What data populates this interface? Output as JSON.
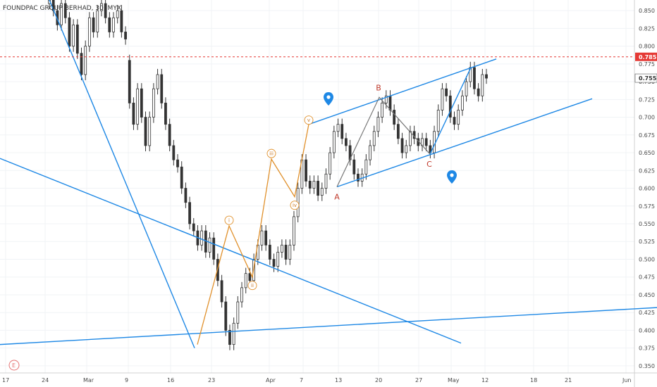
{
  "chart_data": {
    "type": "candlestick",
    "title": "FOUNDPAC GROUP BERHAD, 30, MYX",
    "price_axis": {
      "range": [
        0.34,
        0.865
      ],
      "ticks": [
        "0.850",
        "0.825",
        "0.800",
        "0.775",
        "0.750",
        "0.725",
        "0.700",
        "0.675",
        "0.650",
        "0.625",
        "0.600",
        "0.575",
        "0.550",
        "0.525",
        "0.500",
        "0.475",
        "0.450",
        "0.425",
        "0.400",
        "0.375",
        "0.350"
      ],
      "last_price": "0.785",
      "current_price": "0.755"
    },
    "time_axis": {
      "labels": [
        "17",
        "24",
        "Mar",
        "9",
        "16",
        "23",
        "Apr",
        "7",
        "13",
        "20",
        "27",
        "May",
        "12",
        "18",
        "21",
        "Jun"
      ]
    },
    "series": [
      {
        "type": "candlestick",
        "points": [
          [
            0.86,
            0.865
          ],
          [
            0.865,
            0.85
          ],
          [
            0.85,
            0.83
          ],
          [
            0.83,
            0.86
          ],
          [
            0.86,
            0.84
          ],
          [
            0.84,
            0.8
          ],
          [
            0.8,
            0.83
          ],
          [
            0.83,
            0.79
          ],
          [
            0.79,
            0.76
          ],
          [
            0.76,
            0.8
          ],
          [
            0.8,
            0.84
          ],
          [
            0.84,
            0.82
          ],
          [
            0.82,
            0.85
          ],
          [
            0.85,
            0.86
          ],
          [
            0.86,
            0.84
          ],
          [
            0.84,
            0.82
          ],
          [
            0.82,
            0.84
          ],
          [
            0.84,
            0.85
          ],
          [
            0.85,
            0.82
          ],
          [
            0.82,
            0.81
          ],
          [
            0.78,
            0.72
          ],
          [
            0.72,
            0.69
          ],
          [
            0.69,
            0.74
          ],
          [
            0.74,
            0.7
          ],
          [
            0.7,
            0.66
          ],
          [
            0.66,
            0.7
          ],
          [
            0.7,
            0.74
          ],
          [
            0.74,
            0.76
          ],
          [
            0.76,
            0.72
          ],
          [
            0.72,
            0.69
          ],
          [
            0.69,
            0.66
          ],
          [
            0.66,
            0.64
          ],
          [
            0.64,
            0.63
          ],
          [
            0.63,
            0.6
          ],
          [
            0.6,
            0.58
          ],
          [
            0.58,
            0.55
          ],
          [
            0.55,
            0.54
          ],
          [
            0.54,
            0.52
          ],
          [
            0.52,
            0.54
          ],
          [
            0.54,
            0.51
          ],
          [
            0.51,
            0.53
          ],
          [
            0.53,
            0.5
          ],
          [
            0.5,
            0.47
          ],
          [
            0.47,
            0.44
          ],
          [
            0.44,
            0.4
          ],
          [
            0.4,
            0.38
          ],
          [
            0.38,
            0.41
          ],
          [
            0.41,
            0.44
          ],
          [
            0.44,
            0.46
          ],
          [
            0.46,
            0.48
          ],
          [
            0.48,
            0.47
          ],
          [
            0.47,
            0.5
          ],
          [
            0.5,
            0.52
          ],
          [
            0.52,
            0.54
          ],
          [
            0.54,
            0.52
          ],
          [
            0.52,
            0.5
          ],
          [
            0.5,
            0.49
          ],
          [
            0.49,
            0.51
          ],
          [
            0.51,
            0.52
          ],
          [
            0.52,
            0.5
          ],
          [
            0.5,
            0.52
          ],
          [
            0.52,
            0.56
          ],
          [
            0.56,
            0.6
          ],
          [
            0.6,
            0.64
          ],
          [
            0.64,
            0.61
          ],
          [
            0.61,
            0.6
          ],
          [
            0.6,
            0.61
          ],
          [
            0.61,
            0.59
          ],
          [
            0.59,
            0.6
          ],
          [
            0.6,
            0.62
          ],
          [
            0.62,
            0.65
          ],
          [
            0.65,
            0.68
          ],
          [
            0.68,
            0.69
          ],
          [
            0.69,
            0.67
          ],
          [
            0.67,
            0.66
          ],
          [
            0.66,
            0.64
          ],
          [
            0.64,
            0.62
          ],
          [
            0.62,
            0.61
          ],
          [
            0.61,
            0.62
          ],
          [
            0.62,
            0.64
          ],
          [
            0.64,
            0.66
          ],
          [
            0.66,
            0.68
          ],
          [
            0.68,
            0.7
          ],
          [
            0.7,
            0.72
          ],
          [
            0.72,
            0.73
          ],
          [
            0.73,
            0.71
          ],
          [
            0.71,
            0.69
          ],
          [
            0.69,
            0.67
          ],
          [
            0.67,
            0.65
          ],
          [
            0.65,
            0.66
          ],
          [
            0.66,
            0.68
          ],
          [
            0.68,
            0.67
          ],
          [
            0.67,
            0.66
          ],
          [
            0.66,
            0.67
          ],
          [
            0.67,
            0.66
          ],
          [
            0.66,
            0.65
          ],
          [
            0.65,
            0.68
          ],
          [
            0.68,
            0.71
          ],
          [
            0.71,
            0.74
          ],
          [
            0.74,
            0.73
          ],
          [
            0.73,
            0.7
          ],
          [
            0.7,
            0.69
          ],
          [
            0.69,
            0.71
          ],
          [
            0.71,
            0.73
          ],
          [
            0.73,
            0.75
          ],
          [
            0.75,
            0.77
          ],
          [
            0.77,
            0.74
          ],
          [
            0.74,
            0.73
          ],
          [
            0.73,
            0.76
          ],
          [
            0.76,
            0.755
          ]
        ]
      }
    ],
    "trend_lines": [
      {
        "from": [
          0,
          0.865
        ],
        "to": [
          0.3,
          0.375
        ]
      },
      {
        "from": [
          0,
          0.64
        ],
        "to": [
          0.7,
          0.382
        ]
      },
      {
        "from": [
          0,
          0.38
        ],
        "to": [
          1.0,
          0.432
        ]
      },
      {
        "from": [
          0.47,
          0.69
        ],
        "to": [
          0.76,
          0.782
        ]
      },
      {
        "from": [
          0.51,
          0.602
        ],
        "to": [
          0.9,
          0.726
        ]
      },
      {
        "from": [
          0.7,
          0.645
        ],
        "to": [
          0.72,
          0.77
        ]
      }
    ],
    "elliott_waves": [
      {
        "label": "i",
        "value": 0.547
      },
      {
        "label": "ii",
        "value": 0.475
      },
      {
        "label": "iii",
        "value": 0.641
      },
      {
        "label": "iv",
        "value": 0.588
      },
      {
        "label": "v",
        "value": 0.69
      }
    ],
    "abc_points": [
      {
        "label": "A",
        "value": 0.602
      },
      {
        "label": "B",
        "value": 0.728
      },
      {
        "label": "C",
        "value": 0.648
      }
    ],
    "annotations": {
      "event_marker": "E"
    },
    "colors": {
      "up": "#26a69a",
      "down": "#333333",
      "trend": "#1e88e5",
      "wave": "#e0902b",
      "abc": "#c0392b",
      "last_price_line": "#e53935"
    }
  }
}
